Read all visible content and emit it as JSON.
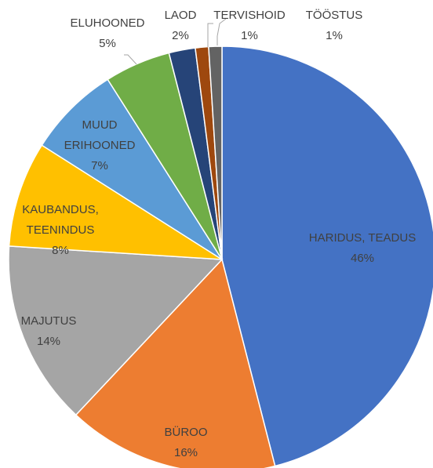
{
  "chart_data": {
    "type": "pie",
    "categories": [
      "HARIDUS, TEADUS",
      "BÜROO",
      "MAJUTUS",
      "KAUBANDUS, TEENINDUS",
      "MUUD ERIHOONED",
      "ELUHOONED",
      "LAOD",
      "TERVISHOID",
      "TÖÖSTUS"
    ],
    "values": [
      46,
      16,
      14,
      8,
      7,
      5,
      2,
      1,
      1
    ],
    "value_labels": [
      "46%",
      "16%",
      "14%",
      "8%",
      "7%",
      "5%",
      "2%",
      "1%",
      "1%"
    ],
    "colors": [
      "#4472c4",
      "#ed7d31",
      "#a5a5a5",
      "#ffc000",
      "#5b9bd5",
      "#70ad47",
      "#264478",
      "#9e480e",
      "#636363"
    ]
  }
}
